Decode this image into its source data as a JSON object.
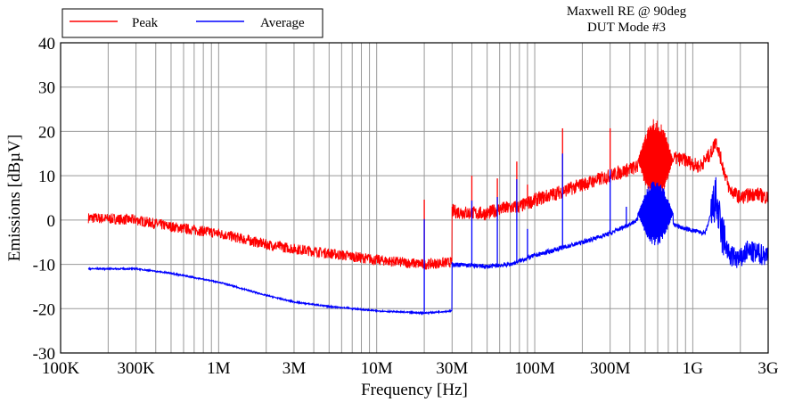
{
  "chart_data": {
    "type": "line",
    "title_lines": [
      "Maxwell RE @ 90deg",
      "DUT Mode #3"
    ],
    "xlabel": "Frequency [Hz]",
    "ylabel": "Emissions [dBµV]",
    "x_scale": "log",
    "xlim_hz": [
      100000,
      3000000000
    ],
    "ylim": [
      -30,
      40
    ],
    "y_ticks": [
      -30,
      -20,
      -10,
      0,
      10,
      20,
      30,
      40
    ],
    "x_ticks": [
      {
        "hz": 100000,
        "label": "100K"
      },
      {
        "hz": 300000,
        "label": "300K"
      },
      {
        "hz": 1000000,
        "label": "1M"
      },
      {
        "hz": 3000000,
        "label": "3M"
      },
      {
        "hz": 10000000,
        "label": "10M"
      },
      {
        "hz": 30000000,
        "label": "30M"
      },
      {
        "hz": 100000000,
        "label": "100M"
      },
      {
        "hz": 300000000,
        "label": "300M"
      },
      {
        "hz": 1000000000,
        "label": "1G"
      },
      {
        "hz": 3000000000,
        "label": "3G"
      }
    ],
    "grid": true,
    "legend_position": "top-left",
    "series": [
      {
        "name": "Peak",
        "color": "#ff0000",
        "points_mhz_db": [
          [
            0.15,
            0.5
          ],
          [
            0.3,
            0
          ],
          [
            0.5,
            -1.5
          ],
          [
            1,
            -3
          ],
          [
            2,
            -5.5
          ],
          [
            3,
            -6.5
          ],
          [
            5,
            -7.5
          ],
          [
            10,
            -9
          ],
          [
            20,
            -10
          ],
          [
            29.9,
            -9.5
          ],
          [
            30,
            2
          ],
          [
            40,
            1.5
          ],
          [
            50,
            1.5
          ],
          [
            60,
            2.5
          ],
          [
            80,
            3
          ],
          [
            100,
            4.5
          ],
          [
            150,
            6.5
          ],
          [
            200,
            8
          ],
          [
            300,
            10
          ],
          [
            400,
            11.5
          ],
          [
            450,
            12
          ],
          [
            750,
            14
          ],
          [
            900,
            13.5
          ],
          [
            1100,
            12
          ],
          [
            1300,
            15
          ],
          [
            1400,
            18
          ],
          [
            1500,
            14
          ],
          [
            1700,
            7
          ],
          [
            2000,
            5
          ],
          [
            2200,
            5.5
          ],
          [
            2500,
            6
          ],
          [
            3000,
            5
          ]
        ],
        "spikes_mhz_db": [
          [
            20,
            4.6
          ],
          [
            40,
            10
          ],
          [
            58,
            9.4
          ],
          [
            77,
            13.2
          ],
          [
            90,
            8
          ],
          [
            150,
            20.7
          ],
          [
            300,
            20.7
          ],
          [
            380,
            12.5
          ]
        ],
        "resonance": {
          "range_mhz": [
            450,
            750
          ],
          "max": 23,
          "min": 4
        }
      },
      {
        "name": "Average",
        "color": "#0000ff",
        "points_mhz_db": [
          [
            0.15,
            -11
          ],
          [
            0.3,
            -11
          ],
          [
            0.5,
            -12
          ],
          [
            1,
            -14
          ],
          [
            2,
            -17
          ],
          [
            3,
            -18.5
          ],
          [
            5,
            -19.5
          ],
          [
            10,
            -20.5
          ],
          [
            20,
            -21
          ],
          [
            29.9,
            -20.5
          ],
          [
            30,
            -10
          ],
          [
            50,
            -10.5
          ],
          [
            70,
            -10
          ],
          [
            100,
            -8
          ],
          [
            200,
            -5
          ],
          [
            300,
            -3
          ],
          [
            450,
            0
          ],
          [
            750,
            -1
          ],
          [
            900,
            -2
          ],
          [
            1200,
            -3
          ],
          [
            1400,
            5
          ],
          [
            1500,
            -2
          ],
          [
            1700,
            -8
          ],
          [
            2000,
            -9
          ],
          [
            2200,
            -7
          ],
          [
            2500,
            -7.5
          ],
          [
            3000,
            -8
          ]
        ],
        "spikes_mhz_db": [
          [
            20,
            0.2
          ],
          [
            40,
            4.4
          ],
          [
            58,
            5.2
          ],
          [
            77,
            9.2
          ],
          [
            90,
            -2
          ],
          [
            150,
            15
          ],
          [
            300,
            11.4
          ],
          [
            380,
            3
          ]
        ],
        "resonance": {
          "range_mhz": [
            450,
            750
          ],
          "max": 9,
          "min": -6
        }
      }
    ]
  }
}
